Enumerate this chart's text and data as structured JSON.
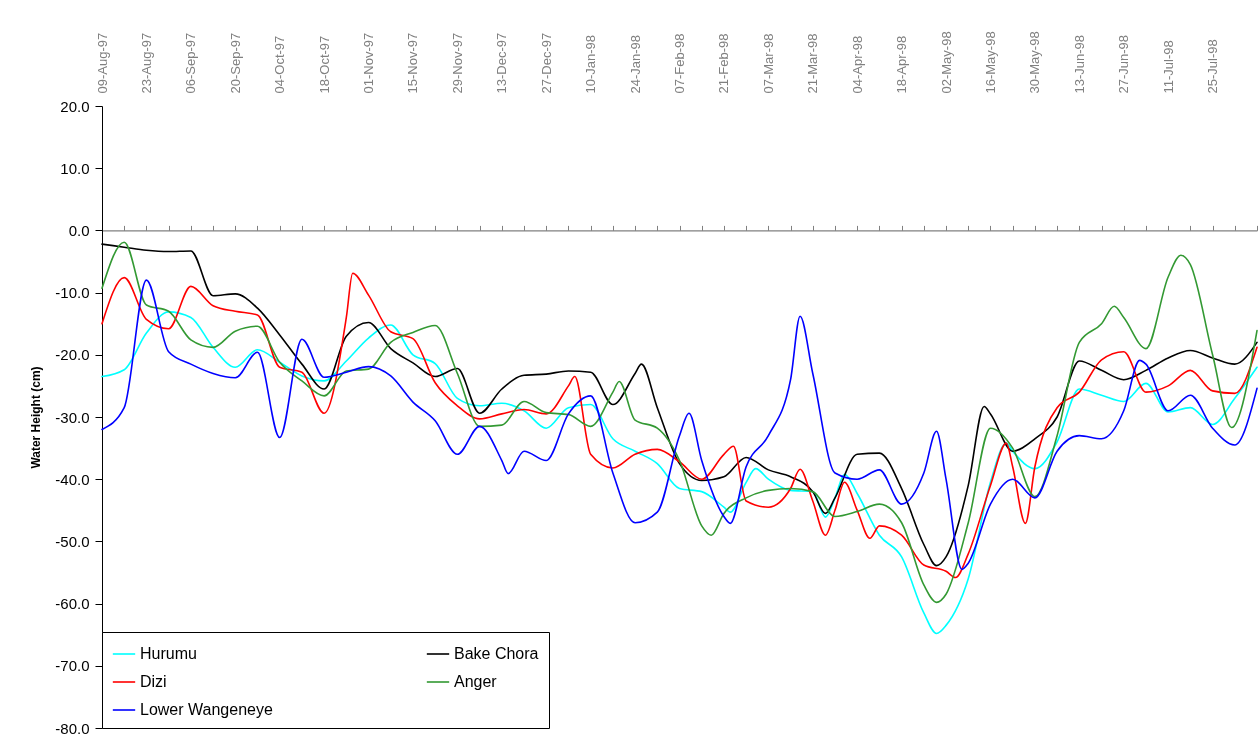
{
  "chart_data": {
    "type": "line",
    "ylabel": "Water Height (cm)",
    "legend": "bottom left",
    "xlim": [
      "1997-08-09",
      "1998-08-08"
    ],
    "xticks": [
      {
        "value": "1997-08-09",
        "label": "09-Aug-97"
      },
      {
        "value": "1997-08-16",
        "label": null
      },
      {
        "value": "1997-08-23",
        "label": "23-Aug-97"
      },
      {
        "value": "1997-08-30",
        "label": null
      },
      {
        "value": "1997-09-06",
        "label": "06-Sep-97"
      },
      {
        "value": "1997-09-13",
        "label": null
      },
      {
        "value": "1997-09-20",
        "label": "20-Sep-97"
      },
      {
        "value": "1997-09-27",
        "label": null
      },
      {
        "value": "1997-10-04",
        "label": "04-Oct-97"
      },
      {
        "value": "1997-10-11",
        "label": null
      },
      {
        "value": "1997-10-18",
        "label": "18-Oct-97"
      },
      {
        "value": "1997-10-25",
        "label": null
      },
      {
        "value": "1997-11-01",
        "label": "01-Nov-97"
      },
      {
        "value": "1997-11-08",
        "label": null
      },
      {
        "value": "1997-11-15",
        "label": "15-Nov-97"
      },
      {
        "value": "1997-11-22",
        "label": null
      },
      {
        "value": "1997-11-29",
        "label": "29-Nov-97"
      },
      {
        "value": "1997-12-06",
        "label": null
      },
      {
        "value": "1997-12-13",
        "label": "13-Dec-97"
      },
      {
        "value": "1997-12-20",
        "label": null
      },
      {
        "value": "1997-12-27",
        "label": "27-Dec-97"
      },
      {
        "value": "1998-01-03",
        "label": null
      },
      {
        "value": "1998-01-10",
        "label": "10-Jan-98"
      },
      {
        "value": "1998-01-17",
        "label": null
      },
      {
        "value": "1998-01-24",
        "label": "24-Jan-98"
      },
      {
        "value": "1998-01-31",
        "label": null
      },
      {
        "value": "1998-02-07",
        "label": "07-Feb-98"
      },
      {
        "value": "1998-02-14",
        "label": null
      },
      {
        "value": "1998-02-21",
        "label": "21-Feb-98"
      },
      {
        "value": "1998-02-28",
        "label": null
      },
      {
        "value": "1998-03-07",
        "label": "07-Mar-98"
      },
      {
        "value": "1998-03-14",
        "label": null
      },
      {
        "value": "1998-03-21",
        "label": "21-Mar-98"
      },
      {
        "value": "1998-03-28",
        "label": null
      },
      {
        "value": "1998-04-04",
        "label": "04-Apr-98"
      },
      {
        "value": "1998-04-11",
        "label": null
      },
      {
        "value": "1998-04-18",
        "label": "18-Apr-98"
      },
      {
        "value": "1998-04-25",
        "label": null
      },
      {
        "value": "1998-05-02",
        "label": "02-May-98"
      },
      {
        "value": "1998-05-09",
        "label": null
      },
      {
        "value": "1998-05-16",
        "label": "16-May-98"
      },
      {
        "value": "1998-05-23",
        "label": null
      },
      {
        "value": "1998-05-30",
        "label": "30-May-98"
      },
      {
        "value": "1998-06-06",
        "label": null
      },
      {
        "value": "1998-06-13",
        "label": "13-Jun-98"
      },
      {
        "value": "1998-06-20",
        "label": null
      },
      {
        "value": "1998-06-27",
        "label": "27-Jun-98"
      },
      {
        "value": "1998-07-04",
        "label": null
      },
      {
        "value": "1998-07-11",
        "label": "11-Jul-98"
      },
      {
        "value": "1998-07-18",
        "label": null
      },
      {
        "value": "1998-07-25",
        "label": "25-Jul-98"
      },
      {
        "value": "1998-08-01",
        "label": null
      },
      {
        "value": "1998-08-08",
        "label": null
      }
    ],
    "ylim": [
      -80,
      20
    ],
    "yticks": [
      {
        "value": 20,
        "label": "20.0"
      },
      {
        "value": 10,
        "label": "10.0"
      },
      {
        "value": 0,
        "label": "0.0"
      },
      {
        "value": -10,
        "label": "-10.0"
      },
      {
        "value": -20,
        "label": "-20.0"
      },
      {
        "value": -30,
        "label": "-30.0"
      },
      {
        "value": -40,
        "label": "-40.0"
      },
      {
        "value": -50,
        "label": "-50.0"
      },
      {
        "value": -60,
        "label": "-60.0"
      },
      {
        "value": -70,
        "label": "-70.0"
      },
      {
        "value": -80,
        "label": "-80.0"
      }
    ],
    "series": [
      {
        "name": "Hurumu",
        "color": "#00ffff",
        "x": [
          "1997-08-09",
          "1997-08-16",
          "1997-08-23",
          "1997-08-30",
          "1997-09-06",
          "1997-09-13",
          "1997-09-20",
          "1997-09-27",
          "1997-10-04",
          "1997-10-11",
          "1997-10-18",
          "1997-10-25",
          "1997-11-01",
          "1997-11-08",
          "1997-11-15",
          "1997-11-22",
          "1997-11-29",
          "1997-12-06",
          "1997-12-13",
          "1997-12-20",
          "1997-12-27",
          "1998-01-03",
          "1998-01-10",
          "1998-01-17",
          "1998-01-24",
          "1998-01-31",
          "1998-02-07",
          "1998-02-14",
          "1998-02-21",
          "1998-02-23",
          "1998-02-28",
          "1998-03-03",
          "1998-03-07",
          "1998-03-14",
          "1998-03-21",
          "1998-03-25",
          "1998-03-28",
          "1998-03-31",
          "1998-04-04",
          "1998-04-11",
          "1998-04-18",
          "1998-04-25",
          "1998-04-29",
          "1998-05-02",
          "1998-05-09",
          "1998-05-16",
          "1998-05-21",
          "1998-05-23",
          "1998-05-30",
          "1998-06-06",
          "1998-06-13",
          "1998-06-20",
          "1998-06-27",
          "1998-07-04",
          "1998-07-11",
          "1998-07-18",
          "1998-07-25",
          "1998-08-01",
          "1998-08-08"
        ],
        "values": [
          -23.5,
          -22.4,
          -16.5,
          -13.1,
          -14,
          -18.8,
          -22,
          -19.2,
          -21.2,
          -23.4,
          -24.2,
          -21,
          -17.3,
          -15.2,
          -20,
          -21.4,
          -27,
          -28.2,
          -27.8,
          -29,
          -31.8,
          -28.5,
          -28,
          -33.5,
          -35.5,
          -37.5,
          -41.5,
          -42,
          -44.5,
          -45.3,
          -40.5,
          -38.3,
          -40,
          -41.8,
          -42,
          -46.1,
          -43,
          -39.2,
          -42.3,
          -49,
          -52.5,
          -61.5,
          -64.8,
          -63.5,
          -56,
          -40.5,
          -34.2,
          -35.5,
          -38.3,
          -34,
          -25.5,
          -26.5,
          -27.5,
          -24.6,
          -29.2,
          -28.5,
          -31.2,
          -27,
          -22
        ]
      },
      {
        "name": "Bake Chora",
        "color": "#000000",
        "x": [
          "1997-08-09",
          "1997-08-16",
          "1997-08-23",
          "1997-08-30",
          "1997-09-06",
          "1997-09-13",
          "1997-09-20",
          "1997-09-27",
          "1997-10-04",
          "1997-10-11",
          "1997-10-18",
          "1997-10-25",
          "1997-11-01",
          "1997-11-08",
          "1997-11-15",
          "1997-11-22",
          "1997-11-29",
          "1997-12-06",
          "1997-12-13",
          "1997-12-20",
          "1997-12-27",
          "1998-01-03",
          "1998-01-10",
          "1998-01-17",
          "1998-01-24",
          "1998-01-26",
          "1998-01-31",
          "1998-02-07",
          "1998-02-14",
          "1998-02-21",
          "1998-02-28",
          "1998-03-07",
          "1998-03-14",
          "1998-03-21",
          "1998-03-25",
          "1998-03-28",
          "1998-04-04",
          "1998-04-11",
          "1998-04-18",
          "1998-04-25",
          "1998-04-29",
          "1998-05-02",
          "1998-05-09",
          "1998-05-14",
          "1998-05-16",
          "1998-05-23",
          "1998-05-30",
          "1998-06-06",
          "1998-06-13",
          "1998-06-20",
          "1998-06-27",
          "1998-07-04",
          "1998-07-11",
          "1998-07-18",
          "1998-07-25",
          "1998-08-01",
          "1998-08-08"
        ],
        "values": [
          -2.2,
          -2.7,
          -3.2,
          -3.4,
          -3.3,
          -10.5,
          -10.2,
          -12.5,
          -16.8,
          -21.5,
          -25.5,
          -17,
          -14.8,
          -19,
          -21.3,
          -23.5,
          -22.2,
          -29.4,
          -25.5,
          -23.3,
          -23.1,
          -22.6,
          -22.8,
          -28,
          -23,
          -21.5,
          -28.5,
          -37.5,
          -40.2,
          -39.6,
          -36.5,
          -38.5,
          -39.6,
          -42,
          -45.5,
          -43,
          -36,
          -35.8,
          -41.5,
          -50.5,
          -53.9,
          -52.5,
          -41,
          -28.3,
          -29.5,
          -35.5,
          -33.5,
          -30,
          -21,
          -22.5,
          -24,
          -22.5,
          -20.5,
          -19.3,
          -20.5,
          -21.5,
          -18
        ]
      },
      {
        "name": "Dizi",
        "color": "#ff0000",
        "x": [
          "1997-08-09",
          "1997-08-16",
          "1997-08-23",
          "1997-08-30",
          "1997-09-06",
          "1997-09-13",
          "1997-09-20",
          "1997-09-27",
          "1997-10-04",
          "1997-10-11",
          "1997-10-18",
          "1997-10-25",
          "1997-10-27",
          "1997-11-01",
          "1997-11-08",
          "1997-11-15",
          "1997-11-22",
          "1997-11-29",
          "1997-12-06",
          "1997-12-13",
          "1997-12-20",
          "1997-12-27",
          "1998-01-03",
          "1998-01-05",
          "1998-01-10",
          "1998-01-17",
          "1998-01-24",
          "1998-01-31",
          "1998-02-07",
          "1998-02-14",
          "1998-02-21",
          "1998-02-24",
          "1998-02-28",
          "1998-03-07",
          "1998-03-14",
          "1998-03-17",
          "1998-03-21",
          "1998-03-25",
          "1998-03-28",
          "1998-03-31",
          "1998-04-04",
          "1998-04-08",
          "1998-04-11",
          "1998-04-18",
          "1998-04-25",
          "1998-05-02",
          "1998-05-05",
          "1998-05-09",
          "1998-05-16",
          "1998-05-21",
          "1998-05-23",
          "1998-05-27",
          "1998-05-30",
          "1998-06-06",
          "1998-06-13",
          "1998-06-20",
          "1998-06-27",
          "1998-07-04",
          "1998-07-11",
          "1998-07-18",
          "1998-07-25",
          "1998-08-01",
          "1998-08-08"
        ],
        "values": [
          -15,
          -7.6,
          -14.3,
          -15.8,
          -9,
          -12.1,
          -13,
          -13.6,
          -22,
          -22.8,
          -29.4,
          -14,
          -6.9,
          -10.4,
          -16.3,
          -17.4,
          -24.5,
          -28.2,
          -30.3,
          -29.5,
          -28.8,
          -29.5,
          -25,
          -23.5,
          -36,
          -38.2,
          -36,
          -35.2,
          -37.2,
          -40,
          -36,
          -34.7,
          -43.5,
          -44.5,
          -41.5,
          -38.4,
          -43.5,
          -49,
          -45,
          -40.5,
          -45,
          -49.5,
          -47.5,
          -49,
          -53.8,
          -54.8,
          -55.8,
          -52,
          -41,
          -34.2,
          -38,
          -47.1,
          -38,
          -28.5,
          -26,
          -20.8,
          -19.5,
          -26,
          -25,
          -22.5,
          -25.8,
          -26.2,
          -18.8
        ]
      },
      {
        "name": "Anger",
        "color": "#339933",
        "x": [
          "1997-08-09",
          "1997-08-16",
          "1997-08-23",
          "1997-08-30",
          "1997-09-06",
          "1997-09-13",
          "1997-09-20",
          "1997-09-27",
          "1997-10-04",
          "1997-10-11",
          "1997-10-18",
          "1997-10-25",
          "1997-11-01",
          "1997-11-08",
          "1997-11-15",
          "1997-11-22",
          "1997-11-29",
          "1997-12-06",
          "1997-12-13",
          "1997-12-20",
          "1997-12-27",
          "1998-01-03",
          "1998-01-10",
          "1998-01-17",
          "1998-01-19",
          "1998-01-24",
          "1998-01-31",
          "1998-02-07",
          "1998-02-14",
          "1998-02-17",
          "1998-02-21",
          "1998-02-28",
          "1998-03-07",
          "1998-03-14",
          "1998-03-21",
          "1998-03-28",
          "1998-04-04",
          "1998-04-11",
          "1998-04-18",
          "1998-04-25",
          "1998-04-29",
          "1998-05-02",
          "1998-05-09",
          "1998-05-16",
          "1998-05-23",
          "1998-05-30",
          "1998-06-06",
          "1998-06-13",
          "1998-06-20",
          "1998-06-24",
          "1998-06-27",
          "1998-07-04",
          "1998-07-11",
          "1998-07-15",
          "1998-07-18",
          "1998-07-25",
          "1998-07-31",
          "1998-08-08"
        ],
        "values": [
          -9.3,
          -1.9,
          -12,
          -13,
          -17.6,
          -18.8,
          -16.2,
          -15.4,
          -21.2,
          -24.2,
          -26.6,
          -22.6,
          -22.3,
          -18,
          -16.4,
          -15.3,
          -23,
          -31.5,
          -31.3,
          -27.5,
          -29.3,
          -29.6,
          -31.5,
          -26,
          -24.3,
          -30.5,
          -31.8,
          -37,
          -47.5,
          -49,
          -45.5,
          -43,
          -41.8,
          -41.5,
          -42,
          -46,
          -45.2,
          -44,
          -47,
          -57,
          -59.8,
          -58.5,
          -47,
          -31.8,
          -35,
          -42.8,
          -33,
          -18,
          -15,
          -12.2,
          -14,
          -19,
          -7.5,
          -4,
          -5.5,
          -20,
          -31.7,
          -16.1
        ]
      },
      {
        "name": "Lower Wangeneye",
        "color": "#0000ff",
        "x": [
          "1997-08-09",
          "1997-08-16",
          "1997-08-23",
          "1997-08-30",
          "1997-09-06",
          "1997-09-13",
          "1997-09-20",
          "1997-09-27",
          "1997-10-04",
          "1997-10-11",
          "1997-10-18",
          "1997-10-25",
          "1997-11-01",
          "1997-11-08",
          "1997-11-15",
          "1997-11-22",
          "1997-11-29",
          "1997-12-06",
          "1997-12-13",
          "1997-12-15",
          "1997-12-20",
          "1997-12-27",
          "1998-01-03",
          "1998-01-10",
          "1998-01-17",
          "1998-01-24",
          "1998-01-31",
          "1998-02-07",
          "1998-02-10",
          "1998-02-14",
          "1998-02-21",
          "1998-02-23",
          "1998-02-28",
          "1998-03-07",
          "1998-03-14",
          "1998-03-17",
          "1998-03-21",
          "1998-03-28",
          "1998-04-04",
          "1998-04-11",
          "1998-04-18",
          "1998-04-25",
          "1998-04-29",
          "1998-05-02",
          "1998-05-07",
          "1998-05-09",
          "1998-05-16",
          "1998-05-23",
          "1998-05-30",
          "1998-06-06",
          "1998-06-13",
          "1998-06-20",
          "1998-06-27",
          "1998-07-02",
          "1998-07-04",
          "1998-07-11",
          "1998-07-18",
          "1998-07-25",
          "1998-08-01",
          "1998-08-08"
        ],
        "values": [
          -32,
          -28.5,
          -8,
          -19.5,
          -21.5,
          -23,
          -23.7,
          -19.6,
          -33.3,
          -17.5,
          -23.6,
          -22.8,
          -21.9,
          -23.4,
          -27.6,
          -30.6,
          -36,
          -31.5,
          -37,
          -39.1,
          -35.5,
          -37,
          -29.5,
          -26.6,
          -39,
          -47,
          -45.3,
          -33,
          -29.4,
          -37,
          -46,
          -47.1,
          -38,
          -33,
          -24,
          -13.8,
          -23,
          -39,
          -40,
          -38.5,
          -44,
          -39,
          -32.3,
          -40,
          -54.5,
          -53.5,
          -44,
          -40,
          -43,
          -35.5,
          -33,
          -33.5,
          -29,
          -20.9,
          -21.5,
          -29,
          -26.5,
          -31.8,
          -34.5,
          -25.4
        ]
      }
    ]
  }
}
